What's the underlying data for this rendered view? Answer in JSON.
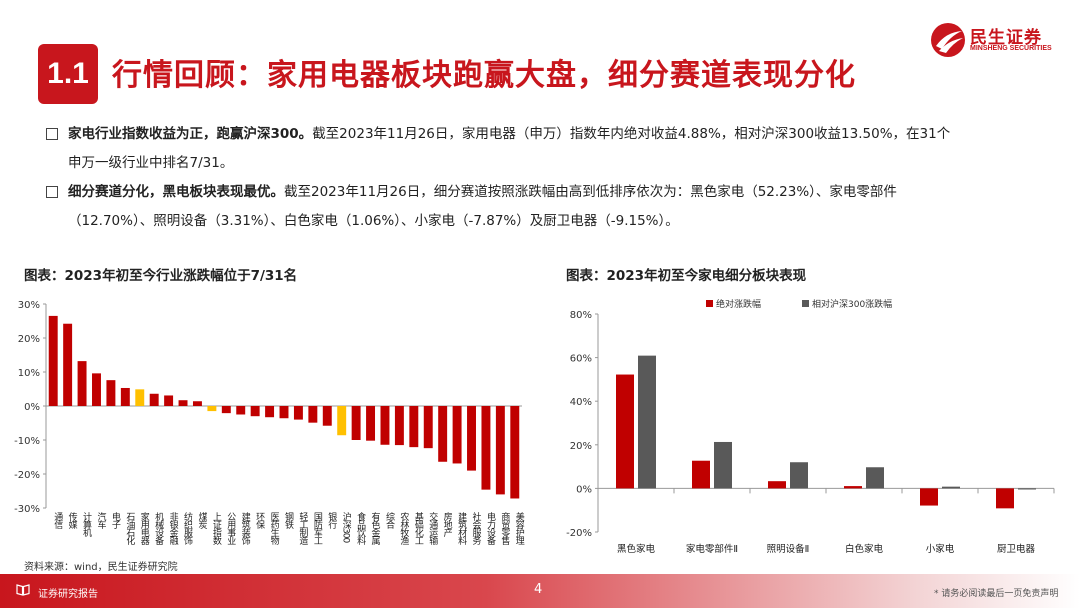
{
  "header": {
    "badge": "1.1",
    "title": "行情回顾：家用电器板块跑赢大盘，细分赛道表现分化",
    "logo_cn": "民生证券",
    "logo_en": "MINSHENG SECURITIES"
  },
  "bullets": [
    {
      "bold": "家电行业指数收益为正，跑赢沪深300。",
      "text": "截至2023年11月26日，家用电器（申万）指数年内绝对收益4.88%，相对沪深300收益13.50%，在31个",
      "text2": "申万一级行业中排名7/31。"
    },
    {
      "bold": "细分赛道分化，黑电板块表现最优。",
      "text": "截至2023年11月26日，细分赛道按照涨跌幅由高到低排序依次为：黑色家电（52.23%）、家电零部件",
      "text2": "（12.70%）、照明设备（3.31%）、白色家电（1.06%）、小家电（-7.87%）及厨卫电器（-9.15%）。"
    }
  ],
  "source": "资料来源：wind，民生证券研究院",
  "footer": {
    "label": "证券研究报告",
    "page": "4",
    "disclaimer": "* 请务必阅读最后一页免责声明"
  },
  "colors": {
    "red": "#c00000",
    "yellow": "#ffc000",
    "gray": "#595959"
  },
  "chart_data": [
    {
      "type": "bar",
      "title": "图表：2023年初至今行业涨跌幅位于7/31名",
      "ylim": [
        -30,
        30
      ],
      "yticks": [
        "30%",
        "20%",
        "10%",
        "0%",
        "-10%",
        "-20%",
        "-30%"
      ],
      "categories": [
        "通信",
        "传媒",
        "计算机",
        "汽车",
        "电子",
        "石油石化",
        "家用电器",
        "机械设备",
        "非银金融",
        "纺织服饰",
        "煤炭",
        "上证指数",
        "公用事业",
        "建筑装饰",
        "环保",
        "医药生物",
        "钢铁",
        "轻工制造",
        "国防军工",
        "银行",
        "沪深300",
        "食品饮料",
        "有色金属",
        "综合",
        "农林牧渔",
        "基础化工",
        "交通运输",
        "房地产",
        "建筑材料",
        "社会服务",
        "电力设备",
        "商贸零售",
        "美容护理"
      ],
      "values": [
        26.5,
        24.2,
        13.2,
        9.6,
        7.6,
        5.3,
        4.9,
        3.6,
        3.1,
        1.7,
        1.4,
        -1.5,
        -2.1,
        -2.5,
        -3.0,
        -3.3,
        -3.6,
        -4.0,
        -4.9,
        -5.8,
        -8.6,
        -10.0,
        -10.2,
        -11.4,
        -11.5,
        -12.1,
        -12.4,
        -16.4,
        -16.9,
        -19.0,
        -24.6,
        -26.0,
        -27.2
      ],
      "highlight": {
        "家用电器": "yellow",
        "上证指数": "yellow",
        "沪深300": "yellow"
      },
      "grid": false
    },
    {
      "type": "bar",
      "title": "图表：2023年初至今家电细分板块表现",
      "ylim": [
        -20,
        80
      ],
      "yticks": [
        "80%",
        "60%",
        "40%",
        "20%",
        "0%",
        "-20%"
      ],
      "categories": [
        "黑色家电",
        "家电零部件Ⅱ",
        "照明设备Ⅱ",
        "白色家电",
        "小家电",
        "厨卫电器"
      ],
      "series": [
        {
          "name": "绝对涨跌幅",
          "values": [
            52.23,
            12.7,
            3.31,
            1.06,
            -7.87,
            -9.15
          ]
        },
        {
          "name": "相对沪深300涨跌幅",
          "values": [
            60.9,
            21.3,
            12.0,
            9.7,
            0.8,
            -0.5
          ]
        }
      ],
      "legend": "top",
      "grid": false
    }
  ]
}
